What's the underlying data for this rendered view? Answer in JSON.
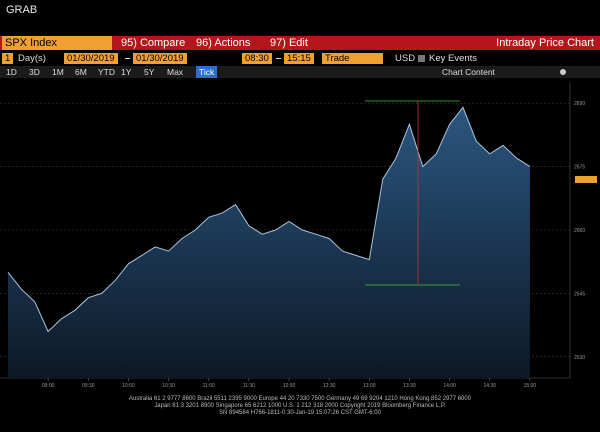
{
  "window_title": "GRAB",
  "toolbar": {
    "security": "SPX Index",
    "buttons": [
      "95) Compare",
      "96) Actions",
      "97) Edit"
    ],
    "view": "Intraday Price Chart"
  },
  "settings": {
    "period": "1",
    "period_unit": "Day(s)",
    "start_date": "01/30/2019",
    "end_date": "01/30/2019",
    "start_time": "08:30",
    "end_time": "15:15",
    "market": "Trade",
    "currency": "USD",
    "events": "Key Events"
  },
  "ranges": [
    "1D",
    "3D",
    "1M",
    "6M",
    "YTD",
    "1Y",
    "5Y",
    "Max"
  ],
  "frequency": "Tick",
  "chart_content": "Chart Content",
  "chart_data": {
    "type": "area",
    "x": [
      510,
      520,
      530,
      540,
      550,
      560,
      570,
      580,
      590,
      600,
      610,
      620,
      630,
      640,
      650,
      660,
      670,
      680,
      690,
      700,
      710,
      720,
      730,
      740,
      750,
      760,
      770,
      780,
      790,
      800,
      810,
      820,
      830,
      840,
      850,
      860,
      870,
      880,
      890,
      900
    ],
    "values": [
      2650,
      2646,
      2643,
      2636,
      2639,
      2641,
      2644,
      2645,
      2648,
      2652,
      2654,
      2656,
      2655,
      2658,
      2660,
      2663,
      2664,
      2666,
      2661,
      2659,
      2660,
      2662,
      2660,
      2659,
      2658,
      2655,
      2654,
      2653,
      2672,
      2677,
      2685,
      2675,
      2678,
      2685,
      2689,
      2681,
      2678,
      2680,
      2677,
      2675
    ],
    "color": "#a9c4de",
    "xlim": [
      510,
      930
    ],
    "xticks": [
      {
        "value": 540,
        "label": "09:00"
      },
      {
        "value": 570,
        "label": "09:30"
      },
      {
        "value": 600,
        "label": "10:00"
      },
      {
        "value": 630,
        "label": "10:30"
      },
      {
        "value": 660,
        "label": "11:00"
      },
      {
        "value": 690,
        "label": "11:30"
      },
      {
        "value": 720,
        "label": "12:00"
      },
      {
        "value": 750,
        "label": "12:30"
      },
      {
        "value": 780,
        "label": "13:00"
      },
      {
        "value": 810,
        "label": "13:30"
      },
      {
        "value": 840,
        "label": "14:00"
      },
      {
        "value": 870,
        "label": "14:30"
      },
      {
        "value": 900,
        "label": "15:00"
      }
    ],
    "ylim": [
      2625,
      2695
    ],
    "yticks": [
      2630,
      2645,
      2660,
      2675,
      2690
    ],
    "grid": true
  },
  "footer": [
    "Australia 61 2 9777 8600 Brazil 5511 2395 9000 Europe 44 20 7330 7500 Germany 49 69 9204 1210 Hong Kong 852 2977 6000",
    "Japan 81 3 3201 8900 Singapore 65 6212 1000 U.S. 1 212 318 2000 Copyright 2019 Bloomberg Finance L.P.",
    "SN 894584 H766-1811-0 30-Jan-19 15:07:26 CST GMT-6:00"
  ]
}
